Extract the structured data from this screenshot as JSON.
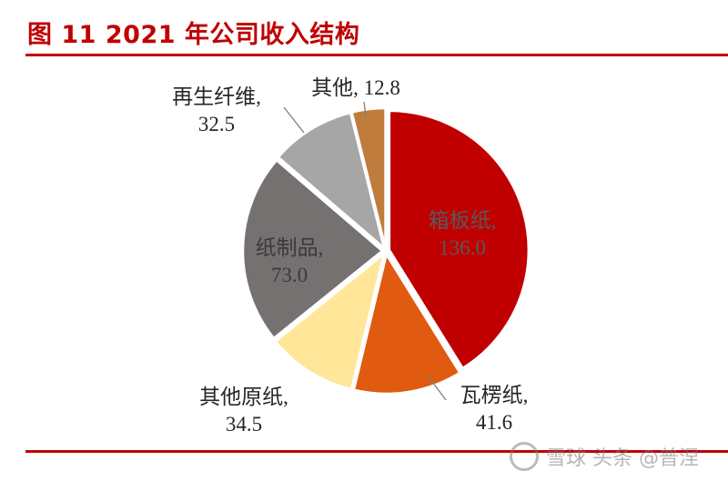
{
  "header": {
    "title": "图 11 2021 年公司收入结构"
  },
  "chart_data": {
    "type": "pie",
    "title": "图 11 2021 年公司收入结构",
    "slices": [
      {
        "name": "箱板纸",
        "value": 136.0,
        "value_label": "136.0",
        "color": "#c00000",
        "label_color": "#595959"
      },
      {
        "name": "瓦楞纸",
        "value": 41.6,
        "value_label": "41.6",
        "color": "#e05a0f",
        "label_color": "#262626"
      },
      {
        "name": "其他原纸",
        "value": 34.5,
        "value_label": "34.5",
        "color": "#ffe699",
        "label_color": "#262626"
      },
      {
        "name": "纸制品",
        "value": 73.0,
        "value_label": "73.0",
        "color": "#767171",
        "label_color": "#3a3a3a"
      },
      {
        "name": "再生纤维",
        "value": 32.5,
        "value_label": "32.5",
        "color": "#a6a6a6",
        "label_color": "#262626"
      },
      {
        "name": "其他",
        "value": 12.8,
        "value_label": "12.8",
        "color": "#c07c3c",
        "label_color": "#262626"
      }
    ],
    "start_angle_deg": 0,
    "direction": "clockwise",
    "exploded": true,
    "grid": false,
    "legend": "none"
  },
  "watermark": {
    "text": "雪球 头条 @普涅"
  }
}
